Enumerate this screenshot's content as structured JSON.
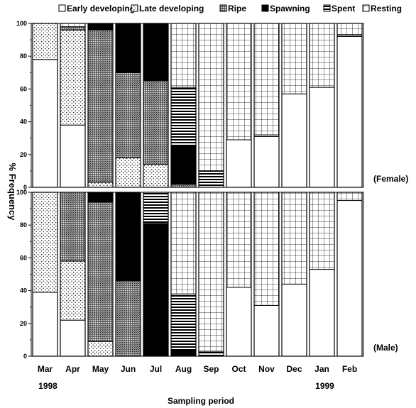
{
  "chart_data": {
    "type": "bar",
    "stacked": true,
    "ylabel": "% Frequency",
    "xlabel": "Sampling period",
    "ylim": [
      0,
      100
    ],
    "yticks": [
      0,
      20,
      40,
      60,
      80,
      100
    ],
    "categories": [
      "Mar",
      "Apr",
      "May",
      "Jun",
      "Jul",
      "Aug",
      "Sep",
      "Oct",
      "Nov",
      "Dec",
      "Jan",
      "Feb"
    ],
    "year_labels": [
      {
        "category": "Mar",
        "text": "1998"
      },
      {
        "category": "Jan",
        "text": "1999"
      }
    ],
    "legend": {
      "placement": "top",
      "items": [
        {
          "key": "early",
          "label": "Early developing",
          "pattern": "blank"
        },
        {
          "key": "late",
          "label": "Late developing",
          "pattern": "dots"
        },
        {
          "key": "ripe",
          "label": "Ripe",
          "pattern": "dense-stipple"
        },
        {
          "key": "spawning",
          "label": "Spawning",
          "pattern": "solid-black"
        },
        {
          "key": "spent",
          "label": "Spent",
          "pattern": "horizontal-lines"
        },
        {
          "key": "resting",
          "label": "Resting",
          "pattern": "grid"
        }
      ]
    },
    "stack_order": [
      "early",
      "late",
      "ripe",
      "spawning",
      "spent",
      "resting"
    ],
    "panels": [
      {
        "label": "(Female)",
        "series": [
          {
            "key": "early",
            "values": [
              78,
              38,
              0,
              0,
              0,
              0,
              0,
              29,
              31,
              57,
              61,
              92
            ]
          },
          {
            "key": "late",
            "values": [
              22,
              58,
              3,
              18,
              14,
              0,
              0,
              0,
              0,
              0,
              0,
              0
            ]
          },
          {
            "key": "ripe",
            "values": [
              0,
              2,
              93,
              52,
              51,
              2,
              0,
              0,
              0,
              0,
              0,
              0
            ]
          },
          {
            "key": "spawning",
            "values": [
              0,
              0,
              4,
              30,
              35,
              23,
              0,
              0,
              0,
              0,
              0,
              0
            ]
          },
          {
            "key": "spent",
            "values": [
              0,
              0,
              0,
              0,
              0,
              36,
              10,
              0,
              1,
              0,
              0,
              1
            ]
          },
          {
            "key": "resting",
            "values": [
              0,
              2,
              0,
              0,
              0,
              39,
              90,
              71,
              68,
              43,
              39,
              7
            ]
          }
        ]
      },
      {
        "label": "(Male)",
        "series": [
          {
            "key": "early",
            "values": [
              39,
              22,
              0,
              0,
              0,
              0,
              0,
              42,
              31,
              44,
              53,
              95
            ]
          },
          {
            "key": "late",
            "values": [
              61,
              36,
              9,
              0,
              0,
              0,
              0,
              0,
              0,
              0,
              0,
              0
            ]
          },
          {
            "key": "ripe",
            "values": [
              0,
              42,
              85,
              46,
              0,
              0,
              0,
              0,
              0,
              0,
              0,
              0
            ]
          },
          {
            "key": "spawning",
            "values": [
              0,
              0,
              6,
              54,
              81,
              4,
              0,
              0,
              0,
              0,
              0,
              0
            ]
          },
          {
            "key": "spent",
            "values": [
              0,
              0,
              0,
              0,
              19,
              34,
              3,
              0,
              0,
              0,
              0,
              0
            ]
          },
          {
            "key": "resting",
            "values": [
              0,
              0,
              0,
              0,
              0,
              62,
              97,
              58,
              69,
              56,
              47,
              5
            ]
          }
        ]
      }
    ]
  }
}
